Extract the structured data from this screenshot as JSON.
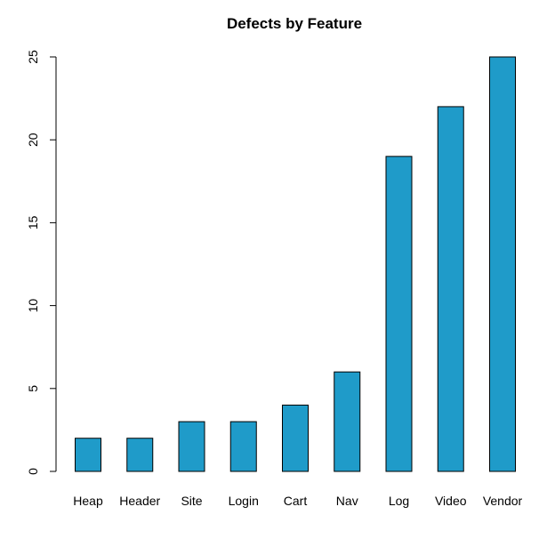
{
  "chart_data": {
    "type": "bar",
    "title": "Defects by Feature",
    "xlabel": "",
    "ylabel": "",
    "categories": [
      "Heap",
      "Header",
      "Site",
      "Login",
      "Cart",
      "Nav",
      "Log",
      "Video",
      "Vendor"
    ],
    "values": [
      2,
      2,
      3,
      3,
      4,
      6,
      19,
      22,
      25
    ],
    "ylim": [
      0,
      25
    ],
    "yticks": [
      "0",
      "5",
      "10",
      "15",
      "20",
      "25"
    ],
    "grid": false,
    "bar_color": "#1f9bc9",
    "bar_border_color": "#000000"
  }
}
